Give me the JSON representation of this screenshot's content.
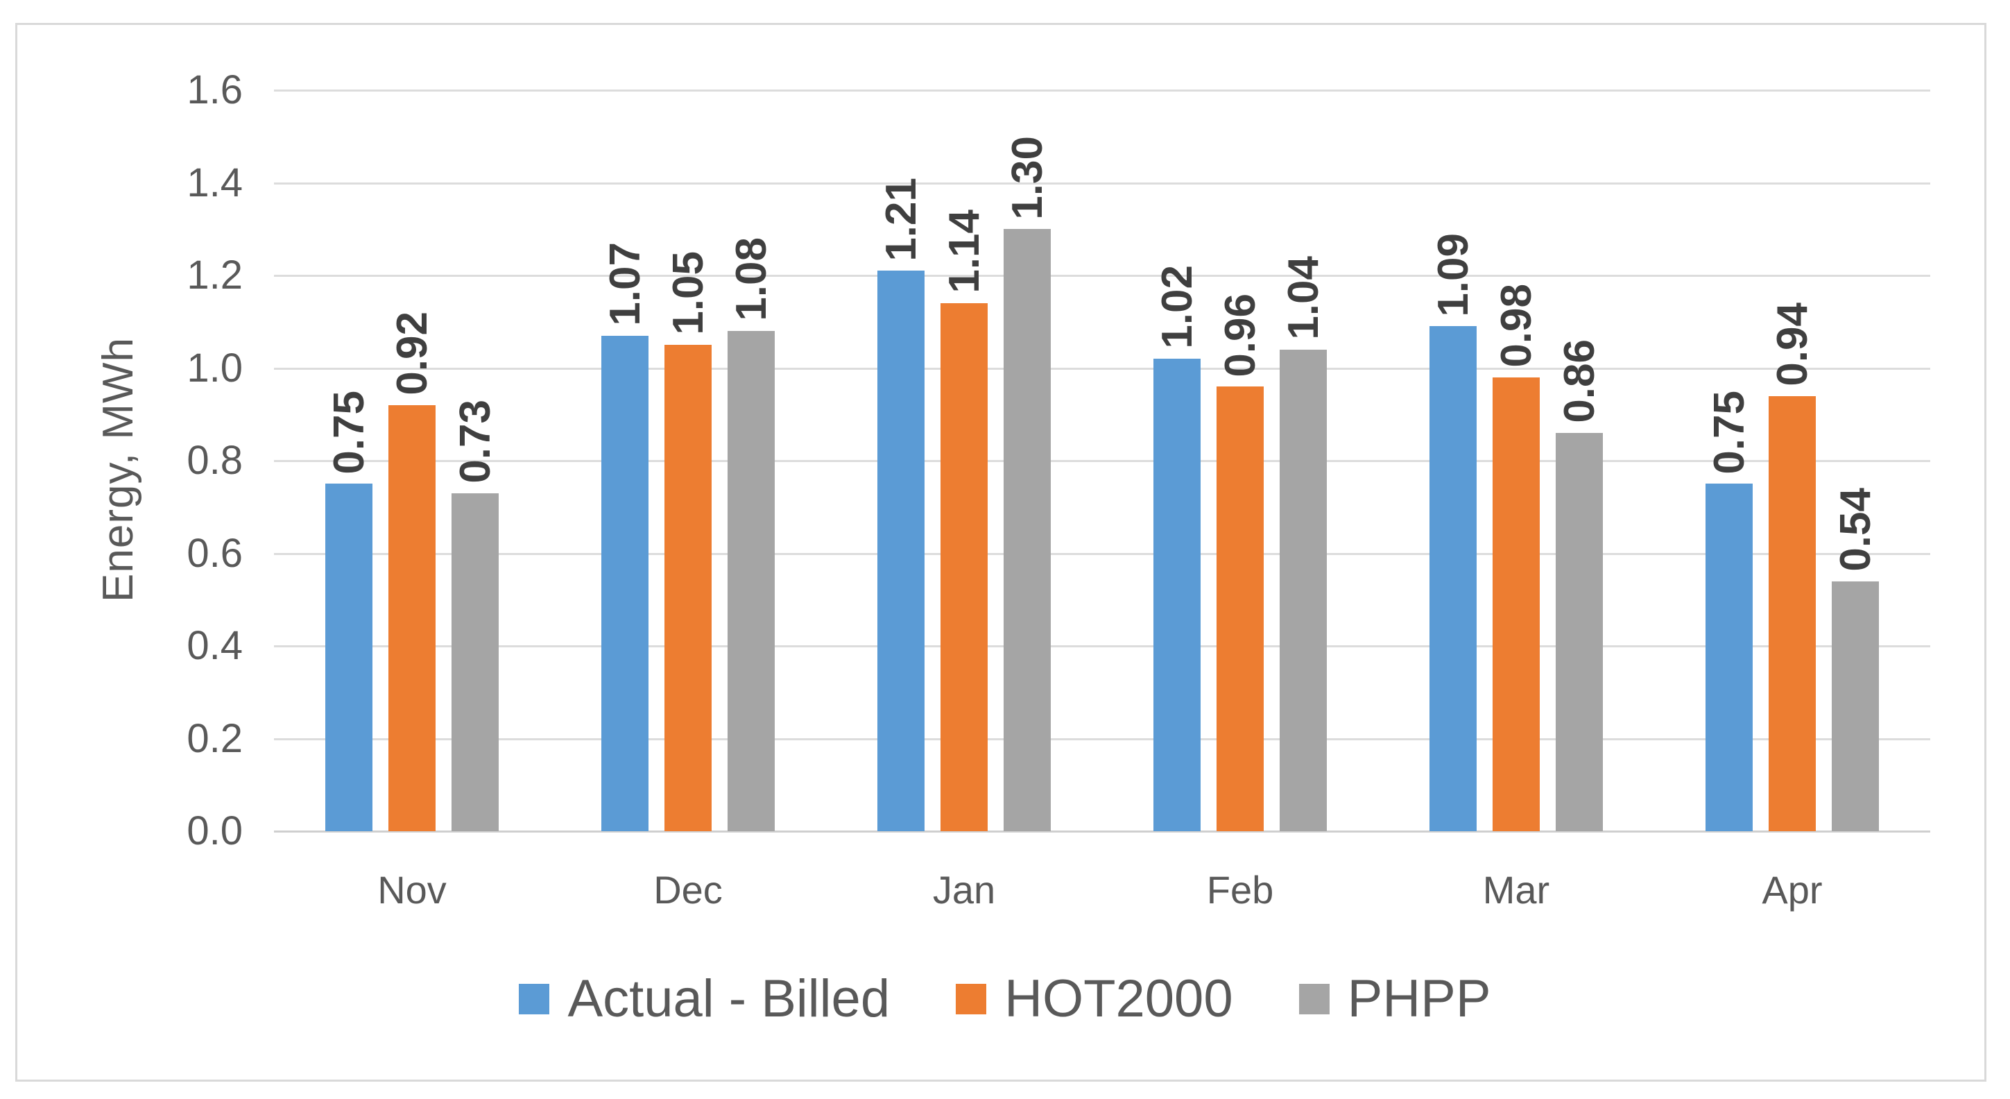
{
  "chart_data": {
    "type": "bar",
    "title": "",
    "categories": [
      "Nov",
      "Dec",
      "Jan",
      "Feb",
      "Mar",
      "Apr"
    ],
    "series": [
      {
        "name": "Actual - Billed",
        "color": "#5B9BD5",
        "values": [
          0.75,
          1.07,
          1.21,
          1.02,
          1.09,
          0.75
        ]
      },
      {
        "name": "HOT2000",
        "color": "#ED7D31",
        "values": [
          0.92,
          1.05,
          1.14,
          0.96,
          0.98,
          0.94
        ]
      },
      {
        "name": "PHPP",
        "color": "#A5A5A5",
        "values": [
          0.73,
          1.08,
          1.3,
          1.04,
          0.86,
          0.54
        ]
      }
    ],
    "xlabel": "",
    "ylabel": "Energy, MWh",
    "ylim": [
      0,
      1.6
    ],
    "ytick_step": 0.2,
    "yticks": [
      "0.0",
      "0.2",
      "0.4",
      "0.6",
      "0.8",
      "1.0",
      "1.2",
      "1.4",
      "1.6"
    ],
    "grid": true,
    "legend_position": "bottom",
    "data_labels": {
      "visible": true,
      "rotation": 270,
      "bold": true,
      "decimals": 2
    }
  },
  "style": {
    "gridline_color": "#DCDCDC",
    "axis_line_color": "#CFCFCF",
    "tick_text_color": "#595959",
    "data_label_color": "#3F3F3F",
    "frame_border_color": "#D9D9D9",
    "background": "#FFFFFF"
  }
}
